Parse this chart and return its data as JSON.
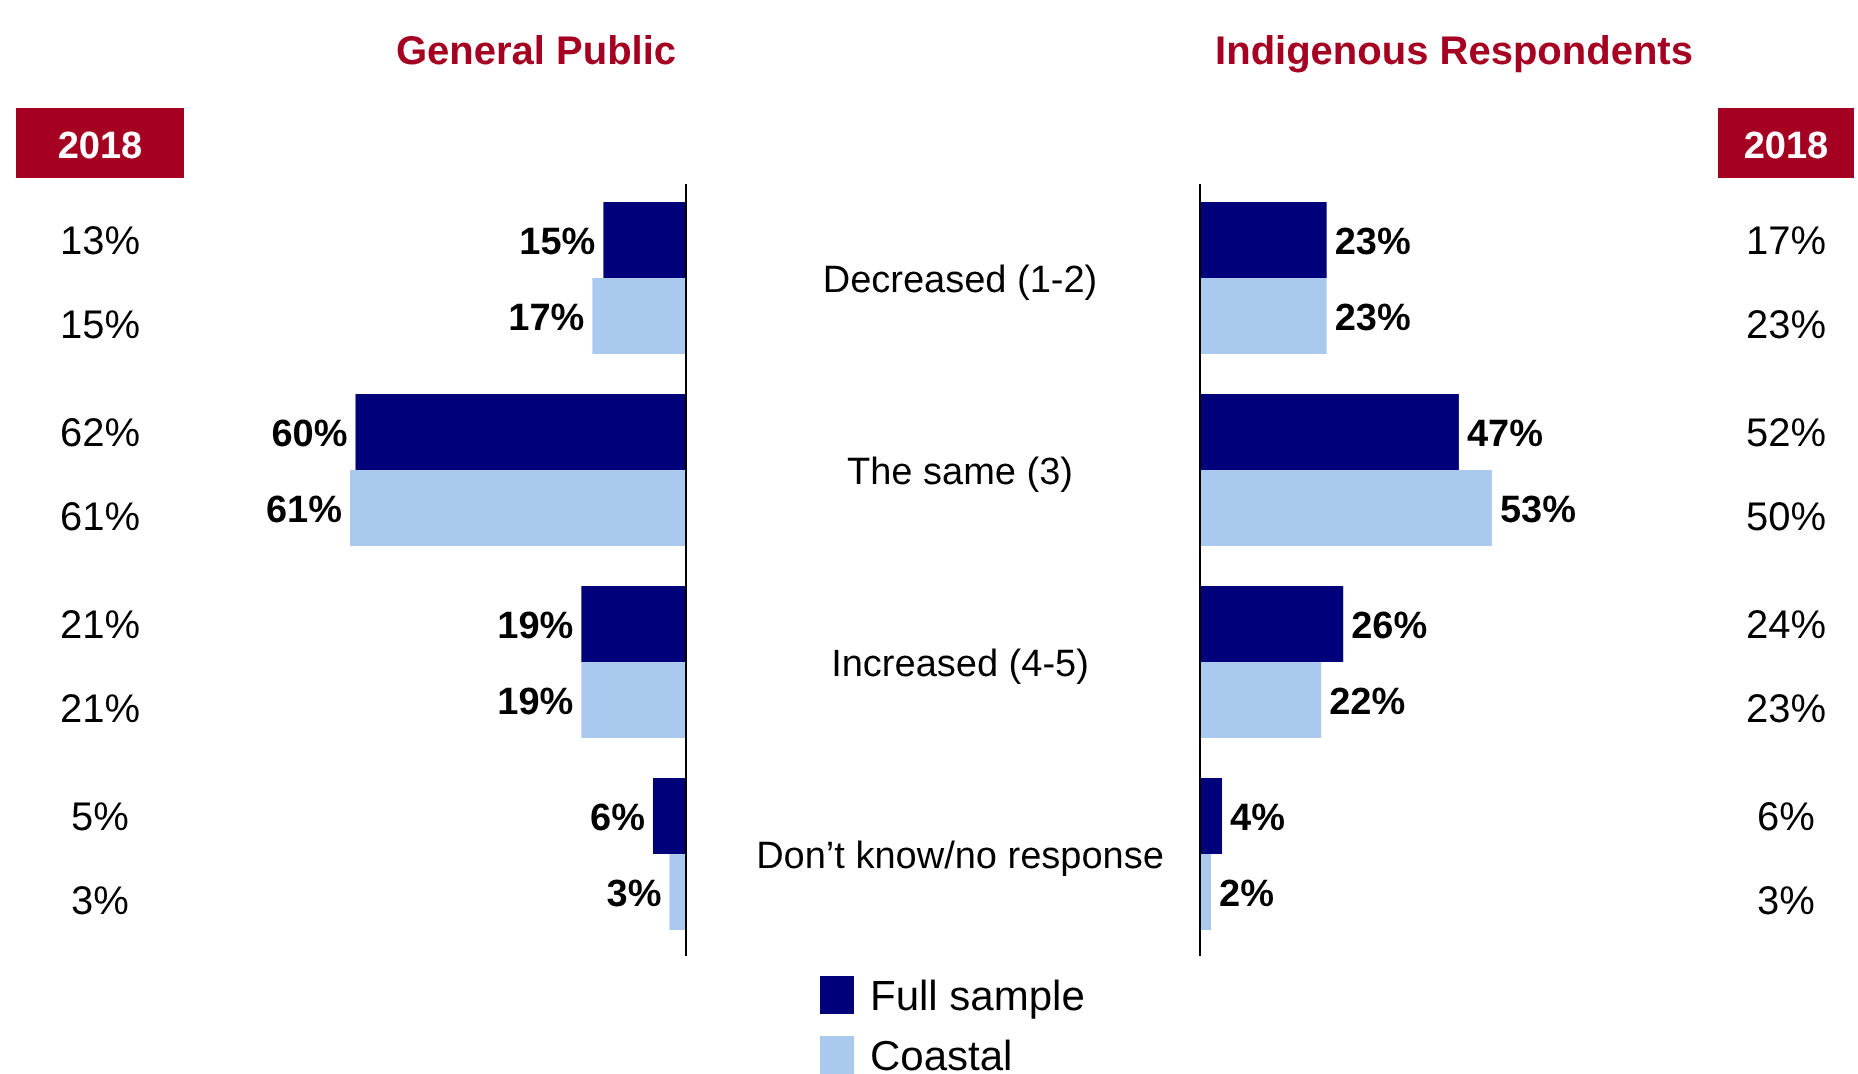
{
  "chart_data": [
    {
      "type": "bar",
      "orientation": "horizontal",
      "title": "General Public",
      "categories": [
        "Decreased (1-2)",
        "The same (3)",
        "Increased (4-5)",
        "Don’t know/no response"
      ],
      "series": [
        {
          "name": "Full sample",
          "color": "#00007a",
          "values": [
            15,
            60,
            19,
            6
          ],
          "value_labels": [
            "15%",
            "60%",
            "19%",
            "6%"
          ]
        },
        {
          "name": "Coastal",
          "color": "#a9c9ef",
          "values": [
            17,
            61,
            19,
            3
          ],
          "value_labels": [
            "17%",
            "61%",
            "19%",
            "3%"
          ]
        }
      ],
      "legend": "bottom",
      "annotations": [
        "2018",
        "13%",
        "15%",
        "62%",
        "61%",
        "21%",
        "21%",
        "5%",
        "3%"
      ]
    },
    {
      "type": "bar",
      "orientation": "horizontal",
      "title": "Indigenous Respondents",
      "categories": [
        null,
        null,
        null,
        null
      ],
      "series": [
        {
          "color": "#00007a",
          "values": [
            23,
            47,
            26,
            4
          ],
          "value_labels": [
            "23%",
            "47%",
            "26%",
            "4%"
          ]
        },
        {
          "color": "#a9c9ef",
          "values": [
            23,
            53,
            22,
            2
          ],
          "value_labels": [
            "23%",
            "53%",
            "22%",
            "2%"
          ]
        }
      ],
      "annotations": [
        "2018",
        "17%",
        "23%",
        "52%",
        "50%",
        "24%",
        "23%",
        "6%",
        "3%"
      ]
    }
  ]
}
